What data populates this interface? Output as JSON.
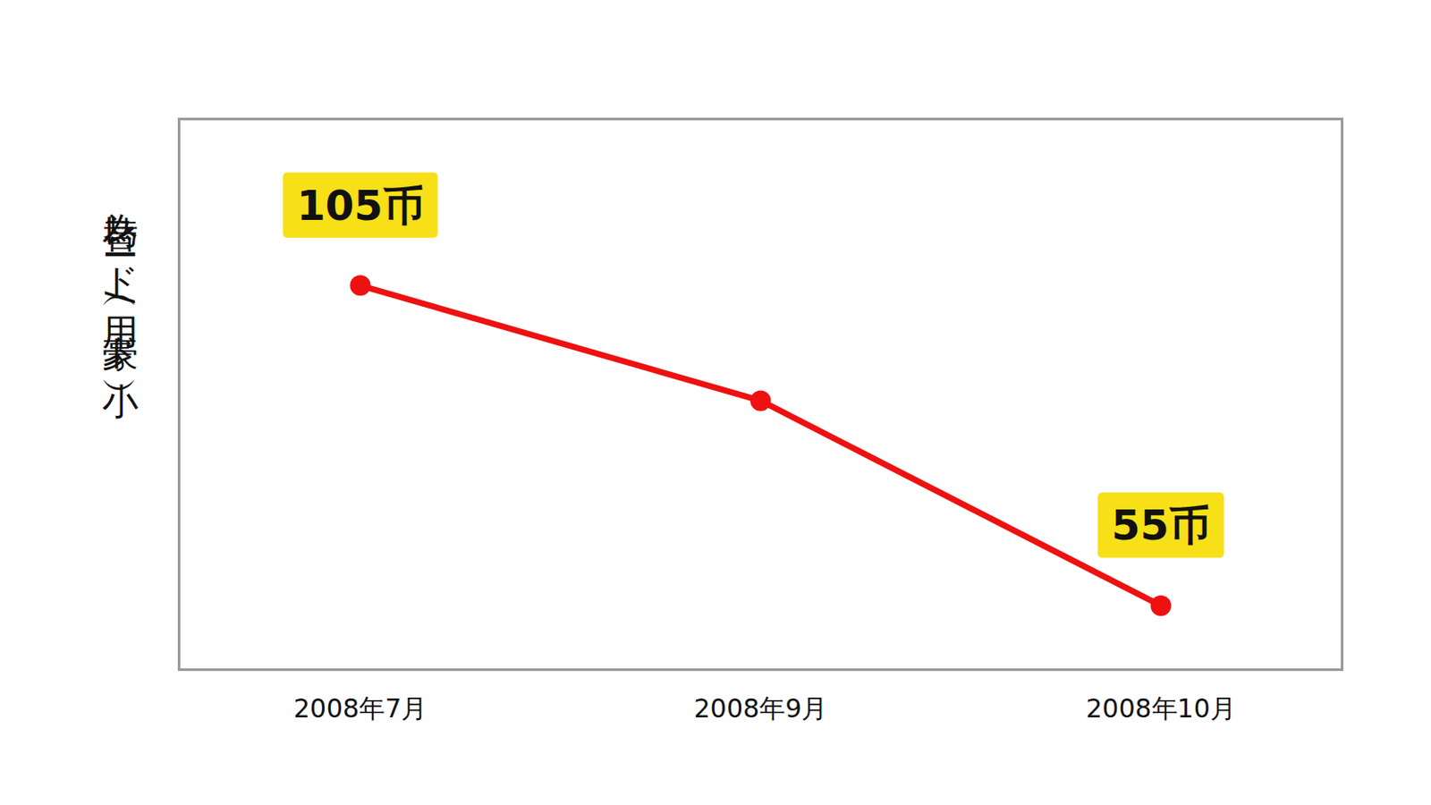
{
  "chart_data": {
    "type": "line",
    "y_label": "為替レード（用/豪ド小）",
    "categories": [
      "2008年7月",
      "2008年9月",
      "2008年10月"
    ],
    "values": [
      105,
      87,
      55
    ],
    "value_labels": [
      "105币",
      null,
      "55币"
    ],
    "data_labels": true,
    "color": "#ee1111",
    "marker": "circle",
    "ylim": [
      45,
      131
    ],
    "yticks": [],
    "tick_labels": "x",
    "grid": false
  }
}
